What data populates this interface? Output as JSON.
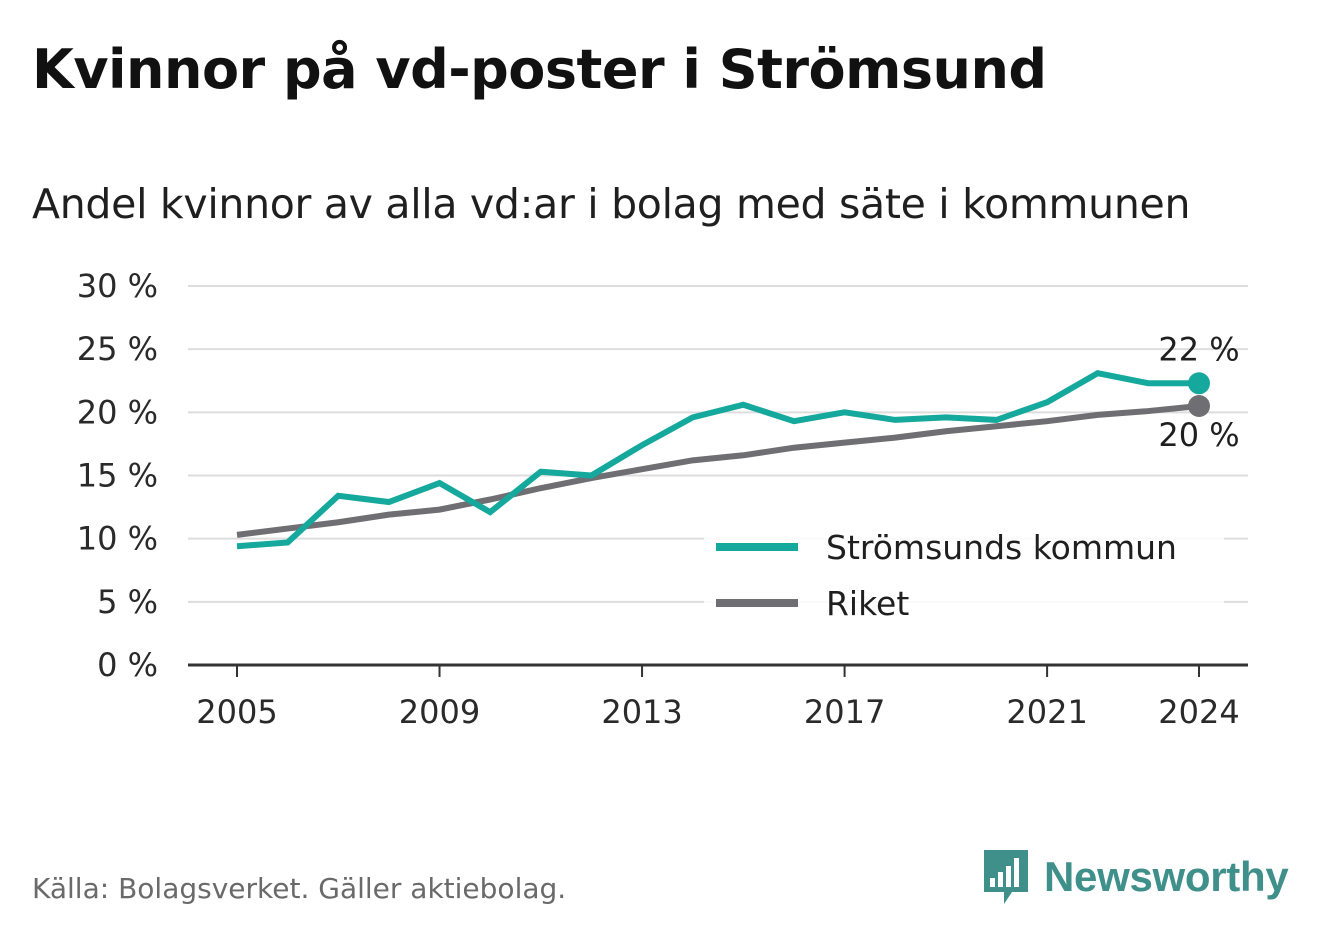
{
  "title": "Kvinnor på vd-poster i Strömsund",
  "subtitle": "Andel kvinnor av alla vd:ar i bolag med säte i kommunen",
  "source": "Källa: Bolagsverket. Gäller aktiebolag.",
  "brand": {
    "name": "Newsworthy",
    "icon": "newsworthy-logo-icon"
  },
  "colors": {
    "kommun": "#15a89c",
    "riket": "#6e6e73",
    "grid": "#dddddd",
    "axis": "#333333",
    "brand": "#3f8f8a"
  },
  "chart_data": {
    "type": "line",
    "title": "Andel kvinnor av alla vd:ar i bolag med säte i kommunen",
    "xlabel": "",
    "ylabel": "",
    "x": [
      2005,
      2006,
      2007,
      2008,
      2009,
      2010,
      2011,
      2012,
      2013,
      2014,
      2015,
      2016,
      2017,
      2018,
      2019,
      2020,
      2021,
      2022,
      2023,
      2024
    ],
    "xticks": [
      2005,
      2009,
      2013,
      2017,
      2021,
      2024
    ],
    "xtick_labels": [
      "2005",
      "2009",
      "2013",
      "2017",
      "2021",
      "2024"
    ],
    "ylim": [
      0,
      30
    ],
    "yticks": [
      0,
      5,
      10,
      15,
      20,
      25,
      30
    ],
    "ytick_labels": [
      "0 %",
      "5 %",
      "10 %",
      "15 %",
      "20 %",
      "25 %",
      "30 %"
    ],
    "grid": true,
    "legend_position": "bottom-right",
    "series": [
      {
        "name": "Strömsunds kommun",
        "color": "#15a89c",
        "values": [
          9.4,
          9.7,
          13.4,
          12.9,
          14.4,
          12.1,
          15.3,
          15.0,
          17.4,
          19.6,
          20.6,
          19.3,
          20.0,
          19.4,
          19.6,
          19.4,
          20.8,
          23.1,
          22.3,
          22.3
        ],
        "end_label": "22 %",
        "end_label_position": "above"
      },
      {
        "name": "Riket",
        "color": "#6e6e73",
        "values": [
          10.3,
          10.8,
          11.3,
          11.9,
          12.3,
          13.1,
          14.0,
          14.8,
          15.5,
          16.2,
          16.6,
          17.2,
          17.6,
          18.0,
          18.5,
          18.9,
          19.3,
          19.8,
          20.1,
          20.5
        ],
        "end_label": "20 %",
        "end_label_position": "below"
      }
    ]
  }
}
